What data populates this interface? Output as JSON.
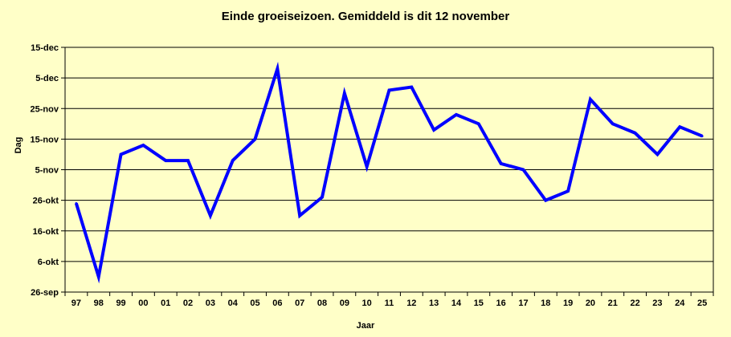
{
  "chart_data": {
    "type": "line",
    "title": "Einde groeiseizoen. Gemiddeld is dit 12 november",
    "xlabel": "Jaar",
    "ylabel": "Dag",
    "categories": [
      "97",
      "98",
      "99",
      "00",
      "01",
      "02",
      "03",
      "04",
      "05",
      "06",
      "07",
      "08",
      "09",
      "10",
      "11",
      "12",
      "13",
      "14",
      "15",
      "16",
      "17",
      "18",
      "19",
      "20",
      "21",
      "22",
      "23",
      "24",
      "25"
    ],
    "y_ticks": [
      {
        "label": "26-sep",
        "value": 0
      },
      {
        "label": "6-okt",
        "value": 10
      },
      {
        "label": "16-okt",
        "value": 20
      },
      {
        "label": "26-okt",
        "value": 30
      },
      {
        "label": "5-nov",
        "value": 40
      },
      {
        "label": "15-nov",
        "value": 50
      },
      {
        "label": "25-nov",
        "value": 60
      },
      {
        "label": "5-dec",
        "value": 70
      },
      {
        "label": "15-dec",
        "value": 80
      }
    ],
    "ylim": [
      0,
      80
    ],
    "y_unit": "days after 26-sep",
    "grid": true,
    "series": [
      {
        "values": [
          29,
          5,
          45,
          48,
          43,
          43,
          25,
          43,
          50,
          73,
          25,
          31,
          65,
          41,
          66,
          67,
          53,
          58,
          55,
          42,
          40,
          30,
          33,
          63,
          55,
          52,
          45,
          54,
          51
        ],
        "color": "#0000ff"
      }
    ],
    "colors": {
      "background": "#ffffc8",
      "plot_background": "#ffffc8",
      "gridline": "#000000",
      "line": "#0000ff"
    }
  }
}
